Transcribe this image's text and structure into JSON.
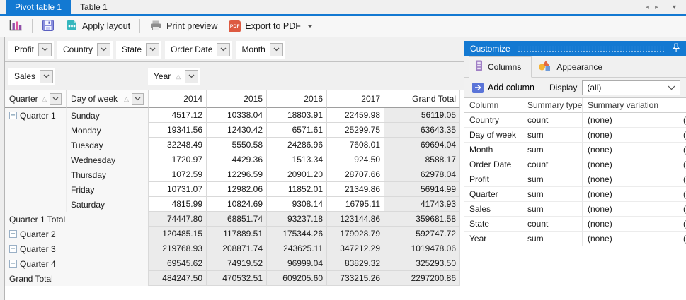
{
  "tabs": {
    "items": [
      {
        "label": "Pivot table 1",
        "active": true
      },
      {
        "label": "Table 1",
        "active": false
      }
    ]
  },
  "toolbar": {
    "apply_layout_label": "Apply layout",
    "print_preview_label": "Print preview",
    "export_pdf_label": "Export to PDF",
    "pdf_icon_text": "PDF"
  },
  "icons": {
    "expand_expanded": "−",
    "expand_collapsed": "+",
    "sort_ascending": "△",
    "scroll_left": "◂",
    "scroll_right": "▸",
    "tab_list": "▾"
  },
  "pivot": {
    "filter_fields": [
      "Profit",
      "Country",
      "State",
      "Order Date",
      "Month"
    ],
    "data_field": "Sales",
    "column_field": "Year",
    "row_fields": [
      "Quarter",
      "Day of week"
    ],
    "column_headers": [
      "2014",
      "2015",
      "2016",
      "2017",
      "Grand Total"
    ],
    "rows": [
      {
        "quarter_label": "Quarter 1",
        "expand": "expanded",
        "day": "Sunday",
        "is_total": false,
        "values": [
          "4517.12",
          "10338.04",
          "18803.91",
          "22459.98",
          "56119.05"
        ]
      },
      {
        "quarter_label": "",
        "expand": null,
        "day": "Monday",
        "is_total": false,
        "values": [
          "19341.56",
          "12430.42",
          "6571.61",
          "25299.75",
          "63643.35"
        ]
      },
      {
        "quarter_label": "",
        "expand": null,
        "day": "Tuesday",
        "is_total": false,
        "values": [
          "32248.49",
          "5550.58",
          "24286.96",
          "7608.01",
          "69694.04"
        ]
      },
      {
        "quarter_label": "",
        "expand": null,
        "day": "Wednesday",
        "is_total": false,
        "values": [
          "1720.97",
          "4429.36",
          "1513.34",
          "924.50",
          "8588.17"
        ]
      },
      {
        "quarter_label": "",
        "expand": null,
        "day": "Thursday",
        "is_total": false,
        "values": [
          "1072.59",
          "12296.59",
          "20901.20",
          "28707.66",
          "62978.04"
        ]
      },
      {
        "quarter_label": "",
        "expand": null,
        "day": "Friday",
        "is_total": false,
        "values": [
          "10731.07",
          "12982.06",
          "11852.01",
          "21349.86",
          "56914.99"
        ]
      },
      {
        "quarter_label": "",
        "expand": null,
        "day": "Saturday",
        "is_total": false,
        "values": [
          "4815.99",
          "10824.69",
          "9308.14",
          "16795.11",
          "41743.93"
        ]
      },
      {
        "quarter_label": "Quarter 1 Total",
        "expand": null,
        "day": "",
        "is_total": true,
        "values": [
          "74447.80",
          "68851.74",
          "93237.18",
          "123144.86",
          "359681.58"
        ]
      },
      {
        "quarter_label": "Quarter 2",
        "expand": "collapsed",
        "day": "",
        "is_total": true,
        "values": [
          "120485.15",
          "117889.51",
          "175344.26",
          "179028.79",
          "592747.72"
        ]
      },
      {
        "quarter_label": "Quarter 3",
        "expand": "collapsed",
        "day": "",
        "is_total": true,
        "values": [
          "219768.93",
          "208871.74",
          "243625.11",
          "347212.29",
          "1019478.06"
        ]
      },
      {
        "quarter_label": "Quarter 4",
        "expand": "collapsed",
        "day": "",
        "is_total": true,
        "values": [
          "69545.62",
          "74919.52",
          "96999.04",
          "83829.32",
          "325293.50"
        ]
      },
      {
        "quarter_label": "Grand Total",
        "expand": null,
        "day": "",
        "is_total": true,
        "values": [
          "484247.50",
          "470532.51",
          "609205.60",
          "733215.26",
          "2297200.86"
        ]
      }
    ]
  },
  "customize": {
    "title": "Customize",
    "tabs": [
      {
        "label": "Columns",
        "active": true
      },
      {
        "label": "Appearance",
        "active": false
      }
    ],
    "add_column_label": "Add column",
    "display_label": "Display",
    "display_value": "(all)",
    "grid": {
      "headers": [
        "Column",
        "Summary type",
        "Summary variation"
      ],
      "clipped_cell_text": "(",
      "rows": [
        {
          "column": "Country",
          "summary_type": "count",
          "summary_variation": "(none)"
        },
        {
          "column": "Day of week",
          "summary_type": "sum",
          "summary_variation": "(none)"
        },
        {
          "column": "Month",
          "summary_type": "sum",
          "summary_variation": "(none)"
        },
        {
          "column": "Order Date",
          "summary_type": "count",
          "summary_variation": "(none)"
        },
        {
          "column": "Profit",
          "summary_type": "sum",
          "summary_variation": "(none)"
        },
        {
          "column": "Quarter",
          "summary_type": "sum",
          "summary_variation": "(none)"
        },
        {
          "column": "Sales",
          "summary_type": "sum",
          "summary_variation": "(none)"
        },
        {
          "column": "State",
          "summary_type": "count",
          "summary_variation": "(none)"
        },
        {
          "column": "Year",
          "summary_type": "sum",
          "summary_variation": "(none)"
        }
      ]
    }
  },
  "colors": {
    "accent_blue": "#1379d2",
    "total_cell_bg": "#ebebeb",
    "pdf_red": "#dd5a41",
    "teal_icon": "#35b7be",
    "purple_bar": "#8f4fa8",
    "pink_bar": "#e0569b",
    "save_icon_blue": "#8a8fdd"
  }
}
